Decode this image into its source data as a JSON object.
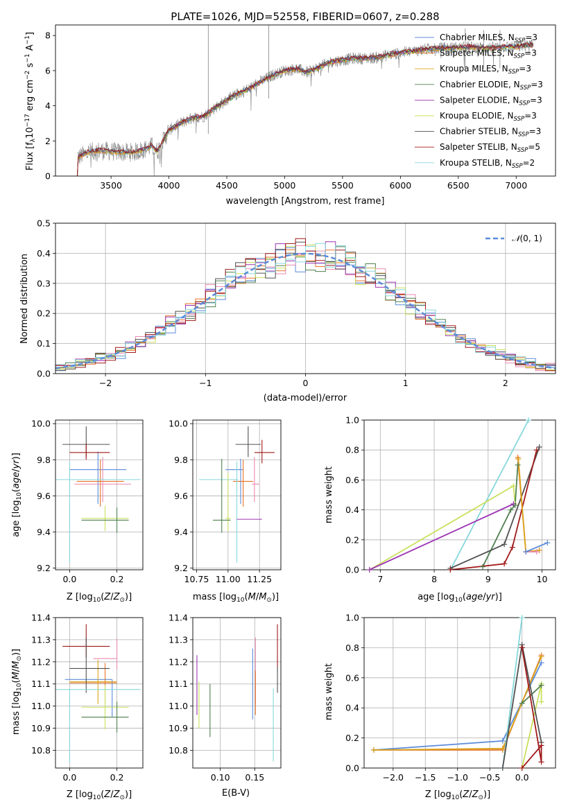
{
  "figure": {
    "title": "PLATE=1026, MJD=52558, FIBERID=0607, z=0.288"
  },
  "colors": {
    "Chabrier MILES": "#5b8bd9",
    "Salpeter MILES": "#e7732a",
    "Kroupa MILES": "#d9a41e",
    "Chabrier ELODIE": "#4f7f4f",
    "Salpeter ELODIE": "#9b34b3",
    "Kroupa ELODIE": "#c8e05a",
    "Chabrier STELIB": "#505050",
    "Salpeter STELIB": "#a11818",
    "Kroupa STELIB": "#86d7dc",
    "Pink": "#e98ab0",
    "Data": "#808080"
  },
  "chart_data": [
    {
      "id": "spectrum",
      "type": "line",
      "title": "PLATE=1026, MJD=52558, FIBERID=0607, z=0.288",
      "xlabel": "wavelength [Angstrom, rest frame]",
      "ylabel": "Flux [f_λ 10^-17 erg cm^-2 s^-1 A^-1]",
      "xlim": [
        3020,
        7340
      ],
      "ylim": [
        0,
        8.6
      ],
      "xticks": [
        3500,
        4000,
        4500,
        5000,
        5500,
        6000,
        6500,
        7000
      ],
      "yticks": [
        0,
        2,
        4,
        6,
        8
      ],
      "grid": false,
      "legend_position": "top-right",
      "legend": [
        "Chabrier MILES, N_SSP=3",
        "Salpeter MILES, N_SSP=3",
        "Kroupa MILES, N_SSP=3",
        "Chabrier ELODIE, N_SSP=3",
        "Salpeter ELODIE, N_SSP=3",
        "Kroupa ELODIE, N_SSP=3",
        "Chabrier STELIB, N_SSP=3",
        "Salpeter STELIB, N_SSP=5",
        "Kroupa STELIB, N_SSP=2"
      ],
      "model_continuum": {
        "x": [
          3200,
          3300,
          3400,
          3500,
          3600,
          3700,
          3800,
          3850,
          3900,
          3950,
          4000,
          4100,
          4200,
          4300,
          4400,
          4500,
          4600,
          4700,
          4800,
          4900,
          5000,
          5100,
          5200,
          5300,
          5400,
          5500,
          5600,
          5700,
          5800,
          5900,
          6000,
          6100,
          6200,
          6300,
          6400,
          6500,
          6600,
          6700,
          6800,
          6900,
          7000,
          7100
        ],
        "y": [
          1.0,
          1.35,
          1.45,
          1.4,
          1.35,
          1.35,
          1.55,
          1.7,
          1.4,
          2.0,
          2.6,
          3.0,
          3.3,
          3.4,
          3.9,
          4.3,
          4.7,
          5.0,
          5.4,
          5.75,
          6.0,
          6.1,
          5.9,
          6.2,
          6.5,
          6.6,
          6.7,
          6.7,
          6.75,
          6.9,
          7.0,
          7.1,
          7.2,
          7.25,
          7.3,
          7.3,
          7.35,
          7.3,
          7.3,
          7.35,
          7.35,
          7.45
        ]
      },
      "data_spikes": {
        "x": [
          4340,
          4862,
          6560,
          6720,
          6860
        ],
        "y": [
          8.6,
          8.6,
          8.4,
          8.3,
          8.3
        ]
      }
    },
    {
      "id": "residuals",
      "type": "line",
      "xlabel": "(data-model)/error",
      "ylabel": "Normed distribution",
      "xlim": [
        -2.5,
        2.5
      ],
      "ylim": [
        0,
        0.5
      ],
      "xticks": [
        -2,
        -1,
        0,
        1,
        2
      ],
      "yticks": [
        0.0,
        0.1,
        0.2,
        0.3,
        0.4,
        0.5
      ],
      "grid": true,
      "legend_position": "top-right",
      "legend": [
        "𝒩(0,1)"
      ],
      "bin_width": 0.1
    },
    {
      "id": "age_vs_Z",
      "type": "scatter",
      "xlabel": "Z [log10(Z/Z⊙)]",
      "ylabel": "age  [log10(age/yr)]",
      "xlim": [
        -0.06,
        0.31
      ],
      "ylim": [
        9.19,
        10.02
      ],
      "xticks": [
        0.0,
        0.2
      ],
      "yticks": [
        9.2,
        9.4,
        9.6,
        9.8,
        10.0
      ],
      "grid": true,
      "errorbars": [
        {
          "model": "Chabrier MILES",
          "x": 0.12,
          "xerr": [
            0.12,
            0.12
          ],
          "y": 9.745,
          "yerr": [
            0.19,
            0.1
          ]
        },
        {
          "model": "Salpeter MILES",
          "x": 0.13,
          "xerr": [
            0.1,
            0.1
          ],
          "y": 9.68,
          "yerr": [
            0.14,
            0.12
          ]
        },
        {
          "model": "Pink",
          "x": 0.14,
          "xerr": [
            0.12,
            0.12
          ],
          "y": 9.665,
          "yerr": [
            0.1,
            0.15
          ]
        },
        {
          "model": "Chabrier STELIB",
          "x": 0.07,
          "xerr": [
            0.1,
            0.1
          ],
          "y": 9.885,
          "yerr": [
            0.07,
            0.1
          ]
        },
        {
          "model": "Salpeter STELIB",
          "x": 0.07,
          "xerr": [
            0.07,
            0.1
          ],
          "y": 9.84,
          "yerr": [
            0.04,
            0.05
          ]
        },
        {
          "model": "Kroupa STELIB",
          "x": 0.0,
          "xerr": [
            0.06,
            0.3
          ],
          "y": 9.69,
          "yerr": [
            0.46,
            0.1
          ]
        },
        {
          "model": "Kroupa ELODIE",
          "x": 0.15,
          "xerr": [
            0.1,
            0.1
          ],
          "y": 9.475,
          "yerr": [
            0.07,
            0.07
          ]
        },
        {
          "model": "Chabrier ELODIE",
          "x": 0.2,
          "xerr": [
            0.15,
            0.05
          ],
          "y": 9.465,
          "yerr": [
            0.07,
            0.07
          ]
        }
      ]
    },
    {
      "id": "age_vs_mass",
      "type": "scatter",
      "xlabel": "mass [log10(M/M⊙)]",
      "ylabel": "",
      "xlim": [
        10.72,
        11.42
      ],
      "ylim": [
        9.19,
        10.02
      ],
      "xticks": [
        10.75,
        11.0,
        11.25
      ],
      "yticks": [
        9.2,
        9.4,
        9.6,
        9.8,
        10.0
      ],
      "grid": true,
      "errorbars": [
        {
          "model": "Chabrier MILES",
          "x": 11.1,
          "xerr": [
            0.12,
            0.02
          ],
          "y": 9.745,
          "yerr": [
            0.19,
            0.06
          ]
        },
        {
          "model": "Salpeter MILES",
          "x": 11.12,
          "xerr": [
            0.08,
            0.08
          ],
          "y": 9.68,
          "yerr": [
            0.14,
            0.12
          ]
        },
        {
          "model": "Pink",
          "x": 11.21,
          "xerr": [
            0.02,
            0.04
          ],
          "y": 9.665,
          "yerr": [
            0.1,
            0.15
          ]
        },
        {
          "model": "Chabrier STELIB",
          "x": 11.16,
          "xerr": [
            0.1,
            0.1
          ],
          "y": 9.885,
          "yerr": [
            0.07,
            0.1
          ]
        },
        {
          "model": "Salpeter STELIB",
          "x": 11.27,
          "xerr": [
            0.06,
            0.1
          ],
          "y": 9.84,
          "yerr": [
            0.06,
            0.07
          ]
        },
        {
          "model": "Kroupa STELIB",
          "x": 11.07,
          "xerr": [
            0.3,
            0.01
          ],
          "y": 9.69,
          "yerr": [
            0.46,
            0.1
          ]
        },
        {
          "model": "Kroupa ELODIE",
          "x": 11.0,
          "xerr": [
            0.02,
            0.02
          ],
          "y": 9.475,
          "yerr": [
            0.07,
            0.25
          ]
        },
        {
          "model": "Chabrier ELODIE",
          "x": 10.95,
          "xerr": [
            0.07,
            0.07
          ],
          "y": 9.465,
          "yerr": [
            0.07,
            0.34
          ]
        },
        {
          "model": "Salpeter ELODIE",
          "x": 11.17,
          "xerr": [
            0.1,
            0.1
          ],
          "y": 9.47,
          "yerr": [
            0.0,
            0.0
          ]
        }
      ]
    },
    {
      "id": "weight_vs_age",
      "type": "line",
      "xlabel": "age  [log10(age/yr)]",
      "ylabel": "mass weight",
      "xlim": [
        6.7,
        10.25
      ],
      "ylim": [
        0,
        1.0
      ],
      "xticks": [
        7,
        8,
        9,
        10
      ],
      "yticks": [
        0.0,
        0.2,
        0.4,
        0.6,
        0.8,
        1.0
      ],
      "grid": true,
      "series": [
        {
          "model": "Kroupa STELIB",
          "x": [
            8.3,
            9.75
          ],
          "y": [
            0.0,
            1.0
          ]
        },
        {
          "model": "Kroupa ELODIE",
          "x": [
            6.8,
            9.47,
            9.5
          ],
          "y": [
            0.0,
            0.56,
            0.44
          ]
        },
        {
          "model": "Salpeter ELODIE",
          "x": [
            6.8,
            9.47
          ],
          "y": [
            0.0,
            0.44
          ]
        },
        {
          "model": "Chabrier ELODIE",
          "x": [
            8.9,
            9.42,
            9.5,
            9.55
          ],
          "y": [
            0.02,
            0.4,
            0.43,
            0.7
          ]
        },
        {
          "model": "Chabrier STELIB",
          "x": [
            8.3,
            9.3,
            9.95
          ],
          "y": [
            0.01,
            0.17,
            0.82
          ]
        },
        {
          "model": "Salpeter STELIB",
          "x": [
            8.3,
            9.3,
            9.45,
            9.9
          ],
          "y": [
            0.0,
            0.04,
            0.15,
            0.8
          ]
        },
        {
          "model": "Salpeter MILES",
          "x": [
            9.55,
            9.7,
            9.95
          ],
          "y": [
            0.75,
            0.12,
            0.13
          ]
        },
        {
          "model": "Kroupa MILES",
          "x": [
            9.56,
            9.7,
            9.95
          ],
          "y": [
            0.74,
            0.12,
            0.13
          ]
        },
        {
          "model": "Pink",
          "x": [
            9.7,
            9.9
          ],
          "y": [
            0.12,
            0.12
          ]
        },
        {
          "model": "Chabrier MILES",
          "x": [
            9.7,
            10.1
          ],
          "y": [
            0.12,
            0.18
          ]
        }
      ]
    },
    {
      "id": "mass_vs_Z",
      "type": "scatter",
      "xlabel": "Z [log10(Z/Z⊙)]",
      "ylabel": "mass [log10(M/M⊙)]",
      "xlim": [
        -0.06,
        0.31
      ],
      "ylim": [
        10.72,
        11.4
      ],
      "xticks": [
        0.0,
        0.2
      ],
      "yticks": [
        10.8,
        10.9,
        11.0,
        11.1,
        11.2,
        11.3,
        11.4
      ],
      "grid": true,
      "errorbars": [
        {
          "model": "Chabrier MILES",
          "x": 0.18,
          "xerr": [
            0.2,
            0.0
          ],
          "y": 11.12,
          "yerr": [
            0.17,
            0.0
          ]
        },
        {
          "model": "Salpeter MILES",
          "x": 0.15,
          "xerr": [
            0.15,
            0.05
          ],
          "y": 11.105,
          "yerr": [
            0.09,
            0.09
          ]
        },
        {
          "model": "Kroupa MILES",
          "x": 0.12,
          "xerr": [
            0.12,
            0.08
          ],
          "y": 11.11,
          "yerr": [
            0.1,
            0.1
          ]
        },
        {
          "model": "Pink",
          "x": 0.2,
          "xerr": [
            0.1,
            0.0
          ],
          "y": 11.215,
          "yerr": [
            0.05,
            0.09
          ]
        },
        {
          "model": "Salpeter STELIB",
          "x": 0.07,
          "xerr": [
            0.1,
            0.1
          ],
          "y": 11.27,
          "yerr": [
            0.05,
            0.1
          ]
        },
        {
          "model": "Chabrier STELIB",
          "x": 0.07,
          "xerr": [
            0.07,
            0.1
          ],
          "y": 11.17,
          "yerr": [
            0.11,
            0.14
          ]
        },
        {
          "model": "Kroupa STELIB",
          "x": 0.0,
          "xerr": [
            0.06,
            0.3
          ],
          "y": 11.075,
          "yerr": [
            0.33,
            0.0
          ]
        },
        {
          "model": "Kroupa ELODIE",
          "x": 0.15,
          "xerr": [
            0.1,
            0.1
          ],
          "y": 10.995,
          "yerr": [
            0.1,
            0.1
          ]
        },
        {
          "model": "Chabrier ELODIE",
          "x": 0.2,
          "xerr": [
            0.15,
            0.05
          ],
          "y": 10.95,
          "yerr": [
            0.07,
            0.07
          ]
        }
      ]
    },
    {
      "id": "mass_vs_ebv",
      "type": "scatter",
      "xlabel": "E(B-V)",
      "ylabel": "",
      "xlim": [
        0.06,
        0.188
      ],
      "ylim": [
        10.72,
        11.4
      ],
      "xticks": [
        0.1,
        0.15
      ],
      "yticks": [
        10.8,
        10.9,
        11.0,
        11.1,
        11.2,
        11.3,
        11.4
      ],
      "grid": true,
      "errorbars": [
        {
          "model": "Salpeter ELODIE",
          "x": 0.066,
          "y": 11.08,
          "yerr": [
            0.12,
            0.15
          ]
        },
        {
          "model": "Kroupa ELODIE",
          "x": 0.069,
          "y": 11.0,
          "yerr": [
            0.1,
            0.11
          ]
        },
        {
          "model": "Chabrier ELODIE",
          "x": 0.085,
          "y": 10.98,
          "yerr": [
            0.12,
            0.12
          ]
        },
        {
          "model": "Chabrier MILES",
          "x": 0.147,
          "y": 11.1,
          "yerr": [
            0.16,
            0.16
          ]
        },
        {
          "model": "Pink",
          "x": 0.151,
          "y": 11.16,
          "yerr": [
            0.15,
            0.15
          ]
        },
        {
          "model": "Salpeter MILES",
          "x": 0.151,
          "y": 11.06,
          "yerr": [
            0.1,
            0.1
          ]
        },
        {
          "model": "Kroupa STELIB",
          "x": 0.177,
          "y": 10.96,
          "yerr": [
            0.21,
            0.12
          ]
        },
        {
          "model": "Salpeter STELIB",
          "x": 0.183,
          "y": 11.26,
          "yerr": [
            0.1,
            0.11
          ]
        },
        {
          "model": "Chabrier STELIB",
          "x": 0.183,
          "y": 11.12,
          "yerr": [
            0.06,
            0.06
          ]
        }
      ]
    },
    {
      "id": "weight_vs_Z",
      "type": "line",
      "xlabel": "Z [log10(Z/Z⊙)]",
      "ylabel": "mass weight",
      "xlim": [
        -2.45,
        0.52
      ],
      "ylim": [
        0,
        1.0
      ],
      "xticks": [
        -2.0,
        -1.5,
        -1.0,
        -0.5,
        0.0
      ],
      "yticks": [
        0.0,
        0.2,
        0.4,
        0.6,
        0.8,
        1.0
      ],
      "grid": true,
      "series": [
        {
          "model": "Chabrier MILES",
          "x": [
            -2.3,
            -0.3,
            0.3
          ],
          "y": [
            0.12,
            0.18,
            0.7
          ]
        },
        {
          "model": "Salpeter MILES",
          "x": [
            -2.3,
            -0.3,
            0.3
          ],
          "y": [
            0.12,
            0.12,
            0.75
          ]
        },
        {
          "model": "Kroupa MILES",
          "x": [
            -2.3,
            -0.3,
            0.3
          ],
          "y": [
            0.12,
            0.13,
            0.74
          ]
        },
        {
          "model": "Kroupa STELIB",
          "x": [
            -0.3,
            0.0
          ],
          "y": [
            0.0,
            1.0
          ]
        },
        {
          "model": "Kroupa ELODIE",
          "x": [
            0.0,
            0.3,
            0.3
          ],
          "y": [
            0.0,
            0.56,
            0.44
          ]
        },
        {
          "model": "Chabrier ELODIE",
          "x": [
            0.0,
            0.3
          ],
          "y": [
            0.43,
            0.55
          ]
        },
        {
          "model": "Chabrier STELIB",
          "x": [
            -0.3,
            0.0,
            0.3
          ],
          "y": [
            0.0,
            0.82,
            0.17
          ]
        },
        {
          "model": "Salpeter STELIB",
          "x": [
            0.0,
            0.3,
            0.3,
            0.0,
            0.0
          ],
          "y": [
            0.0,
            0.15,
            0.04,
            0.8,
            0.8
          ]
        }
      ]
    }
  ]
}
